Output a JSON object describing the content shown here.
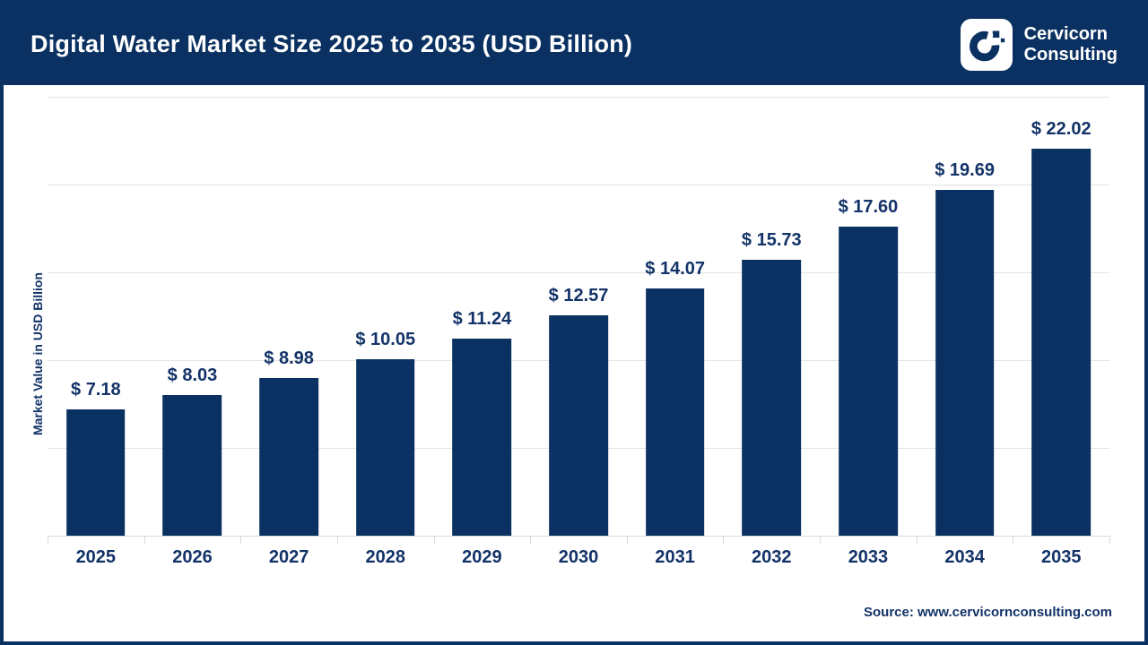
{
  "header": {
    "title": "Digital Water Market Size 2025 to 2035 (USD Billion)",
    "logo": {
      "line1": "Cervicorn",
      "line2": "Consulting"
    }
  },
  "chart_data": {
    "type": "bar",
    "title": "Digital Water Market Size 2025 to 2035 (USD Billion)",
    "categories": [
      "2025",
      "2026",
      "2027",
      "2028",
      "2029",
      "2030",
      "2031",
      "2032",
      "2033",
      "2034",
      "2035"
    ],
    "values": [
      7.18,
      8.03,
      8.98,
      10.05,
      11.24,
      12.57,
      14.07,
      15.73,
      17.6,
      19.69,
      22.02
    ],
    "value_prefix": "$ ",
    "xlabel": "",
    "ylabel": "Market Value in USD Billion",
    "ylim": [
      0,
      25
    ],
    "grid_step": 5,
    "grid": true,
    "legend": false,
    "y_tick_labels_shown": false
  },
  "footer": {
    "source": "Source: www.cervicornconsulting.com"
  },
  "colors": {
    "navy": "#0a3161",
    "text_navy": "#133368",
    "gridline": "#e4e4e4",
    "axis": "#d9d9d9",
    "background": "#ffffff",
    "title_text": "#ffffff"
  }
}
